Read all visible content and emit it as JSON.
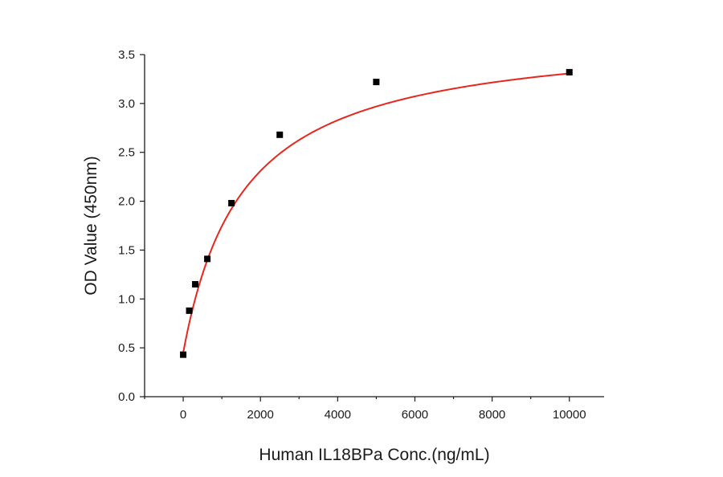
{
  "chart_data": {
    "type": "scatter",
    "title": "",
    "xlabel": "Human IL18BPa Conc.(ng/mL)",
    "ylabel": "OD Value (450nm)",
    "xlim": [
      -1000,
      10900
    ],
    "ylim": [
      0,
      3.5
    ],
    "xticks": [
      0,
      2000,
      4000,
      6000,
      8000,
      10000
    ],
    "yticks": [
      0.0,
      0.5,
      1.0,
      1.5,
      2.0,
      2.5,
      3.0,
      3.5
    ],
    "xtick_labels": [
      "0",
      "2000",
      "4000",
      "6000",
      "8000",
      "10000"
    ],
    "ytick_labels": [
      "0.0",
      "0.5",
      "1.0",
      "1.5",
      "2.0",
      "2.5",
      "3.0",
      "3.5"
    ],
    "grid": false,
    "legend": "none",
    "series": [
      {
        "type": "scatter",
        "marker": "square",
        "color": "#000000",
        "x": [
          0,
          156,
          312,
          625,
          1250,
          2500,
          5000,
          10000
        ],
        "y": [
          0.43,
          0.88,
          1.15,
          1.41,
          1.98,
          2.68,
          3.22,
          3.32
        ]
      },
      {
        "type": "line",
        "fit": "hyperbolic",
        "color": "#e8261c",
        "x_range": [
          0,
          10000
        ],
        "params": {
          "a": 0.45,
          "b": 3.3,
          "k": 1550
        }
      }
    ]
  }
}
